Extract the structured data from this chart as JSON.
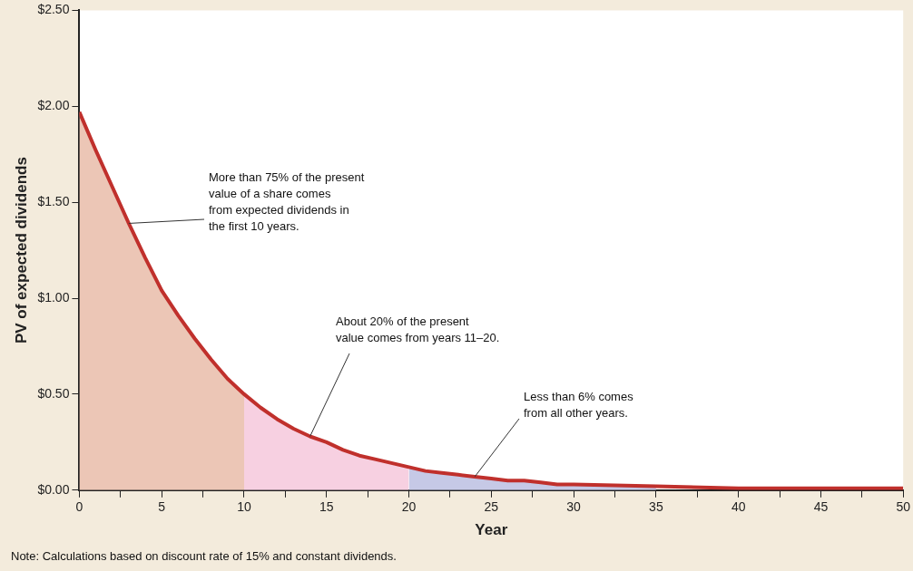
{
  "chart_data": {
    "type": "line",
    "xlabel": "Year",
    "ylabel": "PV of expected dividends",
    "xlim": [
      0,
      50
    ],
    "ylim": [
      0,
      2.5
    ],
    "xticks": [
      0,
      {
        "value": 2.5,
        "label": null
      },
      5,
      {
        "value": 7.5,
        "label": null
      },
      10,
      {
        "value": 12.5,
        "label": null
      },
      15,
      {
        "value": 17.5,
        "label": null
      },
      20,
      {
        "value": 22.5,
        "label": null
      },
      25,
      {
        "value": 27.5,
        "label": null
      },
      30,
      {
        "value": 32.5,
        "label": null
      },
      35,
      {
        "value": 37.5,
        "label": null
      },
      40,
      {
        "value": 42.5,
        "label": null
      },
      45,
      {
        "value": 47.5,
        "label": null
      },
      50
    ],
    "yticks": [
      {
        "value": 0,
        "label": "$0.00"
      },
      {
        "value": 0.5,
        "label": "$0.50"
      },
      {
        "value": 1,
        "label": "$1.00"
      },
      {
        "value": 1.5,
        "label": "$1.50"
      },
      {
        "value": 2,
        "label": "$2.00"
      },
      {
        "value": 2.5,
        "label": "$2.50"
      }
    ],
    "grid": false,
    "legend": false,
    "marker": "none",
    "line_style": "solid",
    "series": [
      {
        "type": "area",
        "color": "#ecc6b6",
        "x": [
          0,
          1,
          2,
          3,
          4,
          5,
          6,
          7,
          8,
          9,
          10
        ],
        "values": [
          1.97,
          1.77,
          1.58,
          1.39,
          1.21,
          1.04,
          0.91,
          0.79,
          0.68,
          0.58,
          0.5
        ]
      },
      {
        "type": "area",
        "color": "#f7d0e1",
        "x": [
          10,
          11,
          12,
          13,
          14,
          15,
          16,
          17,
          18,
          19,
          20
        ],
        "values": [
          0.5,
          0.43,
          0.37,
          0.32,
          0.28,
          0.25,
          0.21,
          0.18,
          0.16,
          0.14,
          0.12
        ]
      },
      {
        "type": "area",
        "color": "#c6c9e6",
        "x": [
          20,
          21,
          22,
          23,
          24,
          25,
          26,
          27,
          28,
          29,
          30,
          35
        ],
        "values": [
          0.12,
          0.1,
          0.09,
          0.08,
          0.07,
          0.06,
          0.05,
          0.05,
          0.04,
          0.03,
          0.03,
          0.02
        ]
      },
      {
        "type": "line",
        "color": "#c0302c",
        "x": [
          0,
          1,
          2,
          3,
          4,
          5,
          6,
          7,
          8,
          9,
          10,
          11,
          12,
          13,
          14,
          15,
          16,
          17,
          18,
          19,
          20,
          21,
          22,
          23,
          24,
          25,
          26,
          27,
          28,
          29,
          30,
          35,
          40,
          45,
          50
        ],
        "values": [
          1.97,
          1.77,
          1.58,
          1.39,
          1.21,
          1.04,
          0.91,
          0.79,
          0.68,
          0.58,
          0.5,
          0.43,
          0.37,
          0.32,
          0.28,
          0.25,
          0.21,
          0.18,
          0.16,
          0.14,
          0.12,
          0.1,
          0.09,
          0.08,
          0.07,
          0.06,
          0.05,
          0.05,
          0.04,
          0.03,
          0.03,
          0.02,
          0.01,
          0.01,
          0.01
        ]
      }
    ],
    "annotations": [
      {
        "text": "More than 75% of the present\nvalue of a share comes\nfrom expected dividends in\nthe first 10 years.",
        "x": 3,
        "y": 1.39
      },
      {
        "text": "About 20% of the present\nvalue comes from years 11–20.",
        "x": 14,
        "y": 0.28
      },
      {
        "text": "Less than 6% comes\nfrom all other years.",
        "x": 24,
        "y": 0.07
      },
      "Note: Calculations based on discount rate of 15% and constant dividends."
    ]
  }
}
